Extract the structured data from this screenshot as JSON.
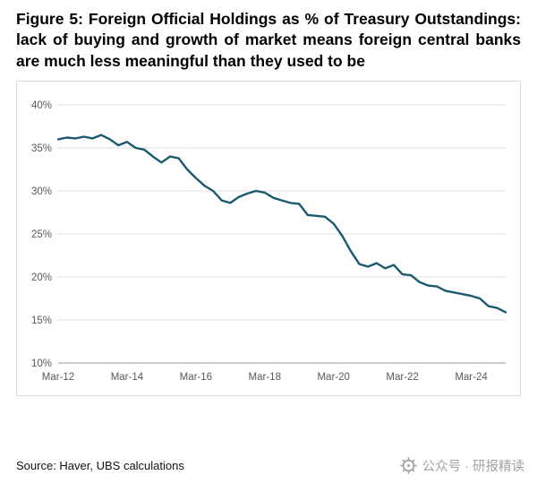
{
  "title": "Figure 5: Foreign Official Holdings as % of Treasury Outstandings: lack of buying and growth of market means foreign central banks are much less meaningful than they used to be",
  "source": "Source: Haver, UBS calculations",
  "watermark": {
    "text": "公众号 · 研报精读",
    "icon": "gear-seal-icon",
    "color": "#a3a3a3"
  },
  "chart_data": {
    "type": "line",
    "title": "",
    "xlabel": "",
    "ylabel": "",
    "grid": true,
    "legend": "none",
    "line_color": "#1b5a6e",
    "grid_color": "#dcdcdc",
    "axis_color": "#9a9a9a",
    "ylim": [
      10,
      40
    ],
    "yticks": [
      10,
      15,
      20,
      25,
      30,
      35,
      40
    ],
    "ytick_suffix": "%",
    "x_unit": "quarterly",
    "x_start": "Mar-12",
    "x_end": "Mar-25",
    "xticks": [
      {
        "index": 0,
        "label": "Mar-12"
      },
      {
        "index": 8,
        "label": "Mar-14"
      },
      {
        "index": 16,
        "label": "Mar-16"
      },
      {
        "index": 24,
        "label": "Mar-18"
      },
      {
        "index": 32,
        "label": "Mar-20"
      },
      {
        "index": 40,
        "label": "Mar-22"
      },
      {
        "index": 48,
        "label": "Mar-24"
      }
    ],
    "values": [
      36.0,
      36.2,
      36.1,
      36.3,
      36.1,
      36.5,
      36.0,
      35.3,
      35.7,
      35.0,
      34.8,
      34.0,
      33.3,
      34.0,
      33.8,
      32.5,
      31.5,
      30.6,
      30.0,
      28.9,
      28.6,
      29.3,
      29.7,
      30.0,
      29.8,
      29.2,
      28.9,
      28.6,
      28.5,
      27.2,
      27.1,
      27.0,
      26.2,
      24.8,
      23.0,
      21.5,
      21.2,
      21.6,
      21.0,
      21.4,
      20.3,
      20.2,
      19.4,
      19.0,
      18.9,
      18.4,
      18.2,
      18.0,
      17.8,
      17.5,
      16.6,
      16.4,
      15.9
    ]
  }
}
